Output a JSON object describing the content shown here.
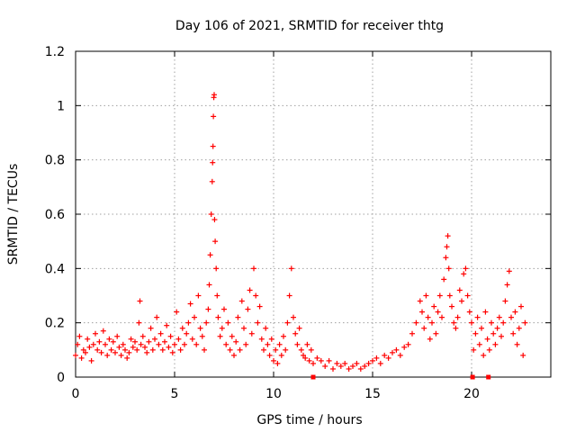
{
  "chart_data": {
    "type": "scatter",
    "title": "Day 106 of 2021, SRMTID for receiver thtg",
    "xlabel": "GPS time / hours",
    "ylabel": "SRMTID / TECUs",
    "xlim": [
      0,
      24
    ],
    "ylim": [
      0,
      1.2
    ],
    "xticks": [
      0,
      5,
      10,
      15,
      20
    ],
    "xtick_labels": [
      "0",
      "5",
      "10",
      "15",
      "20"
    ],
    "yticks": [
      0,
      0.2,
      0.4,
      0.6,
      0.8,
      1.0,
      1.2
    ],
    "ytick_labels": [
      "0",
      "0.2",
      "0.4",
      "0.6",
      "0.8",
      "1",
      "1.2"
    ],
    "grid": true,
    "marker": "plus",
    "series_color": "#ff0000",
    "series": [
      {
        "name": "SRMTID",
        "x": [
          0.0,
          0.1,
          0.2,
          0.3,
          0.4,
          0.5,
          0.6,
          0.7,
          0.8,
          0.9,
          1.0,
          1.1,
          1.2,
          1.3,
          1.4,
          1.5,
          1.6,
          1.7,
          1.8,
          1.9,
          2.0,
          2.1,
          2.2,
          2.3,
          2.4,
          2.5,
          2.6,
          2.7,
          2.8,
          2.9,
          3.0,
          3.1,
          3.2,
          3.25,
          3.3,
          3.4,
          3.5,
          3.6,
          3.7,
          3.8,
          3.9,
          4.0,
          4.1,
          4.2,
          4.3,
          4.4,
          4.5,
          4.6,
          4.7,
          4.8,
          4.9,
          5.0,
          5.1,
          5.2,
          5.3,
          5.4,
          5.5,
          5.6,
          5.7,
          5.8,
          5.9,
          6.0,
          6.1,
          6.2,
          6.3,
          6.4,
          6.5,
          6.6,
          6.7,
          6.75,
          6.8,
          6.85,
          6.9,
          6.92,
          6.94,
          6.96,
          6.98,
          7.0,
          7.02,
          7.05,
          7.1,
          7.15,
          7.2,
          7.3,
          7.4,
          7.5,
          7.6,
          7.7,
          7.8,
          7.9,
          8.0,
          8.1,
          8.2,
          8.3,
          8.4,
          8.5,
          8.6,
          8.7,
          8.8,
          8.9,
          9.0,
          9.1,
          9.2,
          9.3,
          9.4,
          9.5,
          9.6,
          9.7,
          9.8,
          9.9,
          10.0,
          10.1,
          10.2,
          10.3,
          10.4,
          10.5,
          10.6,
          10.7,
          10.8,
          10.9,
          11.0,
          11.1,
          11.2,
          11.3,
          11.4,
          11.5,
          11.6,
          11.7,
          11.8,
          11.9,
          12.0,
          12.2,
          12.4,
          12.6,
          12.8,
          13.0,
          13.2,
          13.4,
          13.6,
          13.8,
          14.0,
          14.2,
          14.4,
          14.6,
          14.8,
          15.0,
          15.2,
          15.4,
          15.6,
          15.8,
          16.0,
          16.2,
          16.4,
          16.6,
          16.8,
          17.0,
          17.2,
          17.4,
          17.5,
          17.6,
          17.7,
          17.8,
          17.9,
          18.0,
          18.1,
          18.2,
          18.3,
          18.4,
          18.5,
          18.6,
          18.7,
          18.75,
          18.8,
          18.85,
          18.9,
          19.0,
          19.1,
          19.2,
          19.3,
          19.4,
          19.5,
          19.6,
          19.7,
          19.8,
          19.9,
          20.0,
          20.1,
          20.2,
          20.3,
          20.4,
          20.5,
          20.6,
          20.7,
          20.8,
          20.9,
          21.0,
          21.1,
          21.2,
          21.3,
          21.4,
          21.5,
          21.6,
          21.7,
          21.8,
          21.9,
          22.0,
          22.1,
          22.2,
          22.3,
          22.4,
          22.5,
          22.6,
          22.7
        ],
        "y": [
          0.08,
          0.12,
          0.15,
          0.07,
          0.1,
          0.09,
          0.14,
          0.11,
          0.06,
          0.12,
          0.16,
          0.1,
          0.13,
          0.09,
          0.17,
          0.12,
          0.08,
          0.14,
          0.1,
          0.13,
          0.09,
          0.15,
          0.11,
          0.08,
          0.12,
          0.1,
          0.07,
          0.09,
          0.14,
          0.11,
          0.13,
          0.1,
          0.2,
          0.28,
          0.12,
          0.15,
          0.11,
          0.09,
          0.13,
          0.18,
          0.1,
          0.14,
          0.22,
          0.12,
          0.16,
          0.1,
          0.13,
          0.19,
          0.11,
          0.15,
          0.09,
          0.12,
          0.24,
          0.14,
          0.1,
          0.18,
          0.12,
          0.16,
          0.2,
          0.27,
          0.14,
          0.22,
          0.12,
          0.3,
          0.18,
          0.15,
          0.1,
          0.2,
          0.25,
          0.34,
          0.45,
          0.6,
          0.72,
          0.79,
          0.85,
          0.96,
          1.03,
          1.04,
          0.58,
          0.5,
          0.4,
          0.3,
          0.22,
          0.15,
          0.18,
          0.25,
          0.12,
          0.2,
          0.1,
          0.15,
          0.08,
          0.13,
          0.22,
          0.1,
          0.28,
          0.18,
          0.12,
          0.25,
          0.32,
          0.16,
          0.4,
          0.3,
          0.2,
          0.26,
          0.14,
          0.1,
          0.18,
          0.12,
          0.08,
          0.14,
          0.06,
          0.1,
          0.05,
          0.12,
          0.08,
          0.15,
          0.1,
          0.2,
          0.3,
          0.4,
          0.22,
          0.16,
          0.12,
          0.18,
          0.1,
          0.08,
          0.07,
          0.12,
          0.06,
          0.1,
          0.05,
          0.07,
          0.06,
          0.04,
          0.06,
          0.03,
          0.05,
          0.04,
          0.05,
          0.03,
          0.04,
          0.05,
          0.03,
          0.04,
          0.05,
          0.06,
          0.07,
          0.05,
          0.08,
          0.07,
          0.09,
          0.1,
          0.08,
          0.11,
          0.12,
          0.16,
          0.2,
          0.28,
          0.24,
          0.18,
          0.3,
          0.22,
          0.14,
          0.2,
          0.26,
          0.16,
          0.24,
          0.3,
          0.22,
          0.36,
          0.44,
          0.48,
          0.52,
          0.4,
          0.3,
          0.26,
          0.2,
          0.18,
          0.22,
          0.32,
          0.28,
          0.38,
          0.4,
          0.3,
          0.24,
          0.2,
          0.1,
          0.16,
          0.22,
          0.12,
          0.18,
          0.08,
          0.24,
          0.14,
          0.1,
          0.2,
          0.16,
          0.12,
          0.18,
          0.22,
          0.15,
          0.2,
          0.28,
          0.34,
          0.39,
          0.22,
          0.16,
          0.24,
          0.12,
          0.18,
          0.26,
          0.08,
          0.2
        ],
        "zero_markers_x": [
          12.0,
          20.05,
          20.85
        ]
      }
    ]
  }
}
